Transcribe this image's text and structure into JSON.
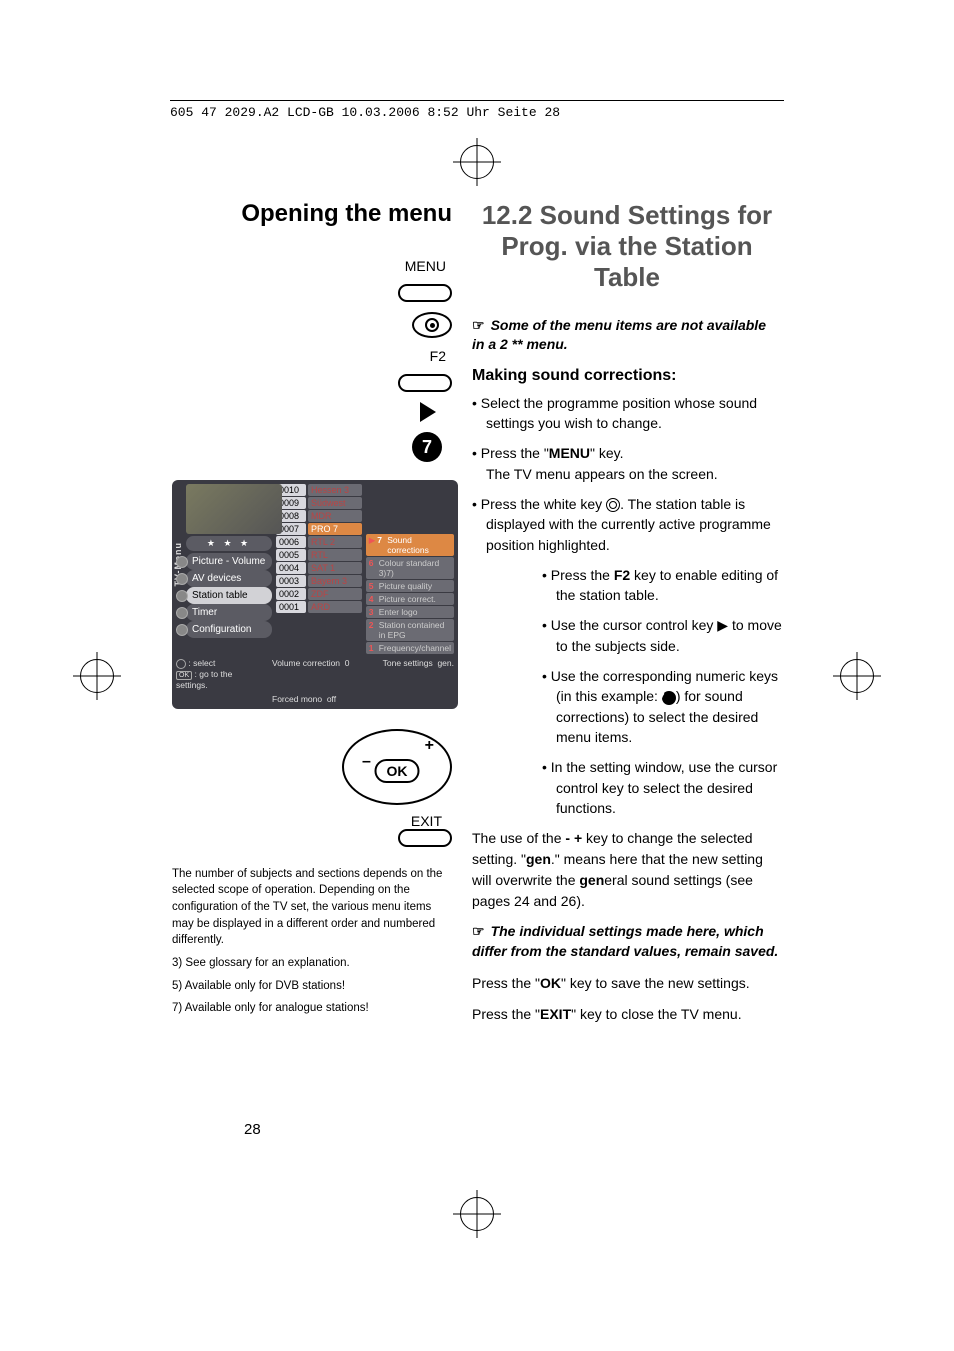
{
  "meta": {
    "headerline": "605 47 2029.A2 LCD-GB  10.03.2006  8:52 Uhr  Seite 28"
  },
  "left": {
    "heading": "Opening the menu",
    "remote": {
      "menu_label": "MENU",
      "f2_label": "F2",
      "num_button": "7",
      "exit_label": "EXIT",
      "ok_label": "OK"
    },
    "footnote_main": "The number of subjects and sections depends on the selected scope of operation. Depending on the configuration of the TV set, the various menu items may be displayed in a different order and numbered differently.",
    "foot3": "3) See glossary for an explanation.",
    "foot5": "5) Available only for DVB stations!",
    "foot7": "7) Available only for analogue stations!"
  },
  "right": {
    "heading": "12.2 Sound Settings for Prog. via the Station Table",
    "note1": "Some of the menu items are not available in a 2 ** menu.",
    "subhead": "Making sound corrections:",
    "b1": "Select the programme position whose sound settings you wish to change.",
    "b2a": "Press the \"",
    "b2b": "MENU",
    "b2c": "\" key.",
    "b2d": "The TV menu appears on the screen.",
    "b3": "Press the white key ",
    "b3b": ". The station table is displayed with the currently active programme position highlighted.",
    "b4a": "Press the ",
    "b4b": "F2",
    "b4c": " key to enable editing of the station table.",
    "b5": "Use the cursor control key ▶ to move to the subjects side.",
    "b6a": "Use the corresponding numeric keys (in this example: ",
    "b6b": ") for sound corrections) to select the desired menu items.",
    "b6num": "7",
    "b7": "In the setting window, use the cursor control key to select the desired functions.",
    "para1a": "The use of the ",
    "para1b": "- +",
    "para1c": " key to change the selected setting. \"",
    "para1d": "gen",
    "para1e": ".\" means here that the new setting will overwrite the ",
    "para1f": "gen",
    "para1g": "eral sound settings (see pages 24 and 26).",
    "note2": "The individual settings made here, which differ from the standard values, remain saved.",
    "p2a": "Press the \"",
    "p2b": "OK",
    "p2c": "\" key to save the new settings.",
    "p3a": "Press the \"",
    "p3b": "EXIT",
    "p3c": "\" key to close the TV menu."
  },
  "osd": {
    "side_label": "TV-Menu",
    "stars": "★ ★ ★",
    "menu": [
      "Picture - Volume",
      "AV devices",
      "Station table",
      "Timer",
      "Configuration"
    ],
    "menu_active_index": 2,
    "stations": [
      {
        "num": "0010",
        "name": "Hessen 3"
      },
      {
        "num": "0009",
        "name": "Südwest"
      },
      {
        "num": "0008",
        "name": "MDR"
      },
      {
        "num": "0007",
        "name": "PRO 7"
      },
      {
        "num": "0006",
        "name": "RTL 2"
      },
      {
        "num": "0005",
        "name": "RTL"
      },
      {
        "num": "0004",
        "name": "SAT 1"
      },
      {
        "num": "0003",
        "name": "Bayern 3"
      },
      {
        "num": "0002",
        "name": "ZDF"
      },
      {
        "num": "0001",
        "name": "ARD"
      }
    ],
    "selected_station_index": 3,
    "subjects": [
      {
        "n": "7",
        "t": "Sound corrections"
      },
      {
        "n": "6",
        "t": "Colour standard 3)7)"
      },
      {
        "n": "5",
        "t": "Picture quality"
      },
      {
        "n": "4",
        "t": "Picture correct."
      },
      {
        "n": "3",
        "t": "Enter logo"
      },
      {
        "n": "2",
        "t": "Station contained in EPG"
      },
      {
        "n": "1",
        "t": "Frequency/channel"
      }
    ],
    "hint_select": ": select",
    "hint_ok": ": go to the settings.",
    "hint_ok_key": "OK",
    "footer": {
      "vol_label": "Volume correction",
      "vol_val": "0",
      "forced_label": "Forced mono",
      "forced_val": "off",
      "tone_label": "Tone settings",
      "tone_val": "gen."
    }
  },
  "pagenum": "28"
}
